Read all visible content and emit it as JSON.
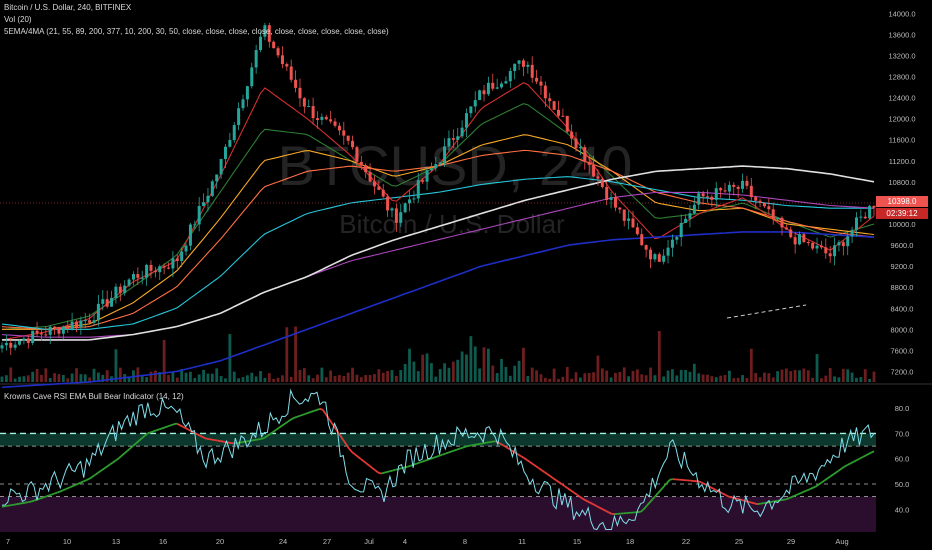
{
  "header": {
    "title_line": "Bitcoin / U.S. Dollar, 240, BITFINEX",
    "volume_line": "Vol (20)",
    "ma_line": "5EMA/4MA (21, 55, 89, 200, 377, 10, 200, 30, 50, close, close, close, close, close, close, close, close, close)",
    "rsi_line": "Krowns Cave RSI EMA Bull Bear Indicator (14, 12)"
  },
  "watermark": {
    "symbol": "BTCUSD, 240",
    "name": "Bitcoin / U.S. Dollar"
  },
  "price_tags": {
    "last_price": "10398.0",
    "countdown": "02:39:12"
  },
  "colors": {
    "background": "#000000",
    "candle_up": "#26a69a",
    "candle_down": "#ef5350",
    "volume_up": "#0f5a4f",
    "volume_down": "#6d1f1f",
    "ema_21": "#2e7d32",
    "ema_55": "#f9a825",
    "ema_89": "#ff7043",
    "ema_200": "#26c6da",
    "ma_10": "#d32f2f",
    "ma_200": "#ab47bc",
    "ma_30": "#1e2ec7",
    "ma_50": "#e0e0e0",
    "rsi_line": "#80deea",
    "rsi_bull_ema": "#2e9e2e",
    "rsi_bear_ema": "#e53935",
    "overbought_zone": "#0f4a3c",
    "oversold_zone": "#3a123e"
  },
  "chart_data": [
    {
      "type": "candlestick",
      "title": "Bitcoin / U.S. Dollar, 240, BITFINEX",
      "x_tick_labels": [
        "7",
        "10",
        "13",
        "16",
        "20",
        "24",
        "27",
        "Jul",
        "4",
        "8",
        "11",
        "15",
        "18",
        "22",
        "25",
        "29",
        "Aug"
      ],
      "y_tick_labels": [
        "14000.0",
        "13600.0",
        "13200.0",
        "12800.0",
        "12400.0",
        "12000.0",
        "11600.0",
        "11200.0",
        "10800.0",
        "10400.0",
        "10000.0",
        "9600.0",
        "9200.0",
        "8800.0",
        "8400.0",
        "8000.0",
        "7600.0",
        "7200.0"
      ],
      "ylim": [
        7000,
        14100
      ],
      "grid": false,
      "close_series": [
        {
          "x": "7",
          "y": 7700
        },
        {
          "x": "10",
          "y": 7950
        },
        {
          "x": "13",
          "y": 8200
        },
        {
          "x": "16",
          "y": 9000
        },
        {
          "x": "20",
          "y": 9300
        },
        {
          "x": "24",
          "y": 11100
        },
        {
          "x": "27",
          "y": 13700
        },
        {
          "x": "27",
          "y": 12200
        },
        {
          "x": "Jul",
          "y": 11500
        },
        {
          "x": "Jul",
          "y": 10100
        },
        {
          "x": "4",
          "y": 11200
        },
        {
          "x": "8",
          "y": 12500
        },
        {
          "x": "11",
          "y": 13100
        },
        {
          "x": "11",
          "y": 11800
        },
        {
          "x": "15",
          "y": 10400
        },
        {
          "x": "18",
          "y": 9300
        },
        {
          "x": "18",
          "y": 10500
        },
        {
          "x": "22",
          "y": 10700
        },
        {
          "x": "25",
          "y": 9800
        },
        {
          "x": "29",
          "y": 9400
        },
        {
          "x": "Aug",
          "y": 10398
        }
      ],
      "moving_averages": [
        {
          "name": "EMA 21",
          "color": "#2e7d32",
          "values": [
            8000,
            8050,
            8250,
            8800,
            9400,
            10600,
            11800,
            11700,
            11200,
            10700,
            11100,
            11900,
            12300,
            11700,
            10900,
            10100,
            10200,
            10400,
            10050,
            9750,
            10000
          ]
        },
        {
          "name": "EMA 55",
          "color": "#f9a825",
          "values": [
            8000,
            8000,
            8100,
            8500,
            9100,
            10100,
            11200,
            11400,
            11200,
            10900,
            11100,
            11500,
            11700,
            11500,
            11000,
            10400,
            10250,
            10300,
            10000,
            9900,
            9800
          ]
        },
        {
          "name": "EMA 89",
          "color": "#ff7043",
          "values": [
            8050,
            8000,
            8050,
            8300,
            8800,
            9700,
            10700,
            11000,
            11100,
            11000,
            11100,
            11300,
            11400,
            11300,
            11000,
            10600,
            10400,
            10300,
            10050,
            9850,
            9750
          ]
        },
        {
          "name": "EMA 200",
          "color": "#26c6da",
          "values": [
            8100,
            8000,
            8000,
            8100,
            8400,
            9000,
            9800,
            10200,
            10400,
            10500,
            10600,
            10750,
            10850,
            10900,
            10800,
            10650,
            10500,
            10450,
            10350,
            10300,
            10300
          ]
        },
        {
          "name": "MA 10",
          "color": "#d32f2f",
          "values": [
            7800,
            7950,
            8200,
            8900,
            9300,
            10900,
            12600,
            12000,
            11300,
            10400,
            11100,
            12200,
            12700,
            11800,
            10600,
            9700,
            10200,
            10500,
            9900,
            9500,
            10150
          ]
        },
        {
          "name": "MA 200",
          "color": "#ab47bc",
          "values": [
            7900,
            7850,
            7850,
            7900,
            8050,
            8300,
            8700,
            9000,
            9300,
            9500,
            9700,
            9900,
            10100,
            10300,
            10500,
            10600,
            10600,
            10550,
            10450,
            10350,
            10300
          ]
        },
        {
          "name": "MA 30",
          "color": "#1e2ec7",
          "values": [
            6900,
            6950,
            7000,
            7100,
            7200,
            7400,
            7700,
            8000,
            8300,
            8600,
            8900,
            9200,
            9400,
            9600,
            9700,
            9750,
            9800,
            9850,
            9850,
            9800,
            9750
          ]
        },
        {
          "name": "MA 50",
          "color": "#e0e0e0",
          "values": [
            7800,
            7800,
            7800,
            7900,
            8050,
            8300,
            8700,
            9000,
            9400,
            9700,
            9950,
            10200,
            10450,
            10650,
            10850,
            11000,
            11050,
            11100,
            11050,
            10950,
            10800
          ]
        }
      ]
    },
    {
      "type": "line",
      "title": "Krowns Cave RSI EMA Bull Bear Indicator (14, 12)",
      "y_tick_labels": [
        "80.0",
        "70.0",
        "60.0",
        "50.0",
        "40.0"
      ],
      "ylim": [
        31,
        88
      ],
      "levels": [
        70,
        65,
        50,
        45
      ],
      "overbought_band": [
        65,
        70
      ],
      "oversold_band": [
        31,
        45
      ],
      "series": [
        {
          "name": "RSI",
          "values": [
            45,
            47,
            52,
            58,
            72,
            81,
            78,
            60,
            65,
            72,
            84,
            85,
            52,
            45,
            60,
            66,
            70,
            71,
            55,
            45,
            38,
            33,
            41,
            64,
            52,
            42,
            40,
            47,
            55,
            66,
            71
          ]
        },
        {
          "name": "EMA",
          "values": [
            41,
            43,
            47,
            52,
            60,
            70,
            74,
            68,
            66,
            68,
            76,
            80,
            63,
            54,
            57,
            61,
            65,
            67,
            60,
            52,
            44,
            38,
            39,
            52,
            51,
            45,
            42,
            44,
            49,
            57,
            63
          ]
        }
      ]
    }
  ]
}
